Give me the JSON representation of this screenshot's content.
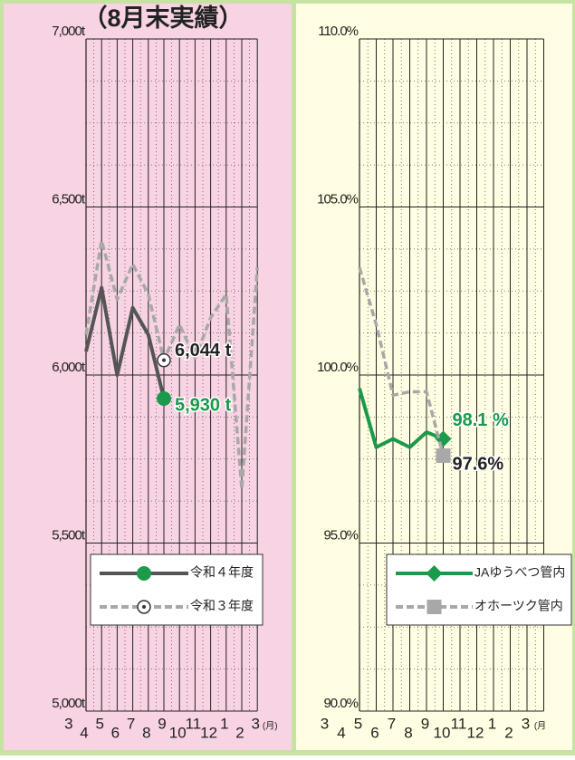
{
  "chart_data": [
    {
      "type": "line",
      "title": "（8月末実績）",
      "categories": [
        "3",
        "4",
        "5",
        "6",
        "7",
        "8",
        "9",
        "10",
        "11",
        "12",
        "1",
        "2",
        "3"
      ],
      "x_unit": "(月)",
      "ylim": [
        5000,
        7000
      ],
      "yticks": [
        {
          "value": 5000,
          "label": "5,000t"
        },
        {
          "value": 5500,
          "label": "5,500t"
        },
        {
          "value": 6000,
          "label": "6,000t"
        },
        {
          "value": 6500,
          "label": "6,500t"
        },
        {
          "value": 7000,
          "label": "7,000t"
        }
      ],
      "series": [
        {
          "name": "令和４年度",
          "color": "#555555",
          "marker_color": "#1a9a4a",
          "marker": "circle",
          "style": "solid",
          "values": [
            null,
            6070,
            6260,
            6000,
            6200,
            6120,
            5930,
            null,
            null,
            null,
            null,
            null,
            null
          ],
          "value_labels": [
            null,
            null,
            null,
            null,
            null,
            null,
            "5,930 t",
            null,
            null,
            null,
            null,
            null,
            null
          ]
        },
        {
          "name": "令和３年度",
          "color": "#a8a8a8",
          "marker_color": "#333333",
          "marker": "target",
          "style": "dashed",
          "values": [
            null,
            6120,
            6400,
            6225,
            6330,
            6240,
            6044,
            6150,
            6050,
            6170,
            6240,
            5660,
            6320
          ],
          "value_labels": [
            null,
            null,
            null,
            null,
            null,
            null,
            "6,044 t",
            null,
            null,
            null,
            null,
            null,
            null
          ]
        }
      ]
    },
    {
      "type": "line",
      "categories": [
        "3",
        "4",
        "5",
        "6",
        "7",
        "8",
        "9",
        "10",
        "11",
        "12",
        "1",
        "2",
        "3"
      ],
      "x_unit": "(月",
      "ylim": [
        90,
        110
      ],
      "yticks": [
        {
          "value": 90,
          "label": "90.0%"
        },
        {
          "value": 95,
          "label": "95.0%"
        },
        {
          "value": 100,
          "label": "100.0%"
        },
        {
          "value": 105,
          "label": "105.0%"
        },
        {
          "value": 110,
          "label": "110.0%"
        }
      ],
      "series": [
        {
          "name": "JAゆうべつ管内",
          "color": "#1a9a4a",
          "marker_color": "#1a9a4a",
          "marker": "diamond",
          "style": "solid",
          "values": [
            null,
            99.6,
            97.85,
            98.1,
            97.85,
            98.3,
            98.1,
            null,
            null,
            null,
            null,
            null,
            null
          ],
          "value_labels": [
            null,
            null,
            null,
            null,
            null,
            null,
            "98.1 %",
            null,
            null,
            null,
            null,
            null,
            null
          ]
        },
        {
          "name": "オホーツク管内",
          "color": "#a8a8a8",
          "marker_color": "#a8a8a8",
          "marker": "square",
          "style": "dashed",
          "values": [
            null,
            103.2,
            101.5,
            99.4,
            99.5,
            99.5,
            97.6,
            null,
            null,
            null,
            null,
            null,
            null
          ],
          "value_labels": [
            null,
            null,
            null,
            null,
            null,
            null,
            "97.6%",
            null,
            null,
            null,
            null,
            null,
            null
          ]
        }
      ]
    }
  ]
}
